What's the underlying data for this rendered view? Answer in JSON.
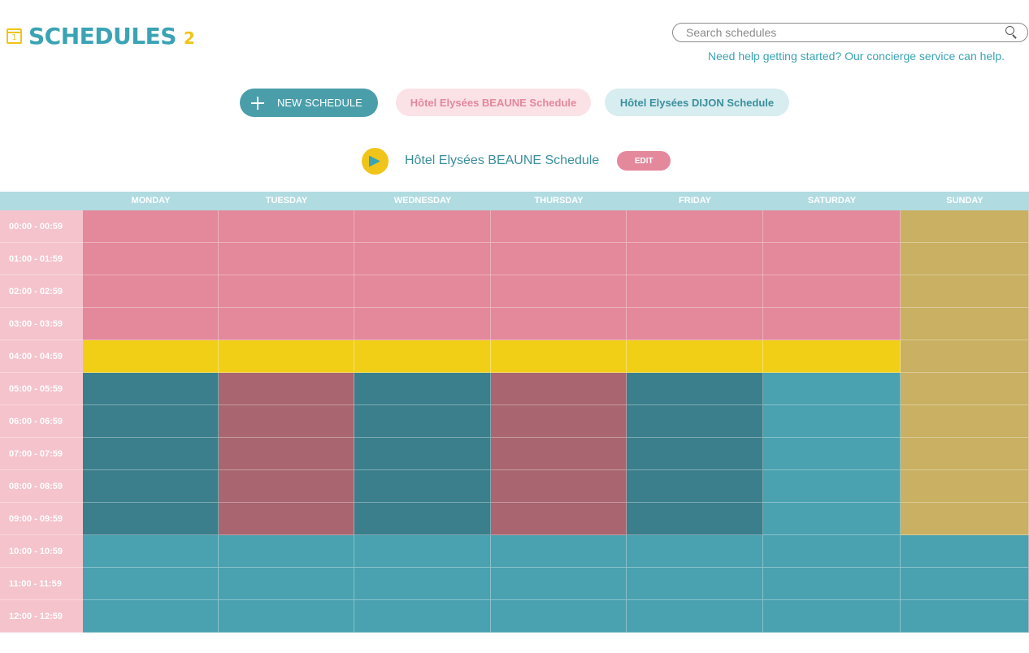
{
  "header": {
    "title": "SCHEDULES",
    "count": "2",
    "calendar_icon_digit": "1"
  },
  "search": {
    "placeholder": "Search schedules"
  },
  "help_text": "Need help getting started? Our concierge service can help.",
  "actions": {
    "new_schedule_label": "NEW SCHEDULE"
  },
  "schedule_tabs": [
    {
      "label": "Hôtel Elysées BEAUNE Schedule"
    },
    {
      "label": "Hôtel Elysées DIJON Schedule"
    }
  ],
  "current_schedule": {
    "name": "Hôtel Elysées BEAUNE Schedule",
    "edit_label": "EDIT"
  },
  "colors": {
    "pink": "#e4889b",
    "yellow": "#f2cf17",
    "dark_teal": "#3a7f8b",
    "mauve": "#a96570",
    "teal": "#4aa1b0",
    "olive": "#c9b062"
  },
  "days": [
    "MONDAY",
    "TUESDAY",
    "WEDNESDAY",
    "THURSDAY",
    "FRIDAY",
    "SATURDAY",
    "SUNDAY"
  ],
  "time_slots": [
    "00:00 - 00:59",
    "01:00 - 01:59",
    "02:00 - 02:59",
    "03:00 - 03:59",
    "04:00 - 04:59",
    "05:00 - 05:59",
    "06:00 - 06:59",
    "07:00 - 07:59",
    "08:00 - 08:59",
    "09:00 - 09:59",
    "10:00 - 10:59",
    "11:00 - 11:59",
    "12:00 - 12:59"
  ],
  "schedule_grid": [
    [
      "pink",
      "pink",
      "pink",
      "pink",
      "pink",
      "pink",
      "olive"
    ],
    [
      "pink",
      "pink",
      "pink",
      "pink",
      "pink",
      "pink",
      "olive"
    ],
    [
      "pink",
      "pink",
      "pink",
      "pink",
      "pink",
      "pink",
      "olive"
    ],
    [
      "pink",
      "pink",
      "pink",
      "pink",
      "pink",
      "pink",
      "olive"
    ],
    [
      "yellow",
      "yellow",
      "yellow",
      "yellow",
      "yellow",
      "yellow",
      "olive"
    ],
    [
      "dark_teal",
      "mauve",
      "dark_teal",
      "mauve",
      "dark_teal",
      "teal",
      "olive"
    ],
    [
      "dark_teal",
      "mauve",
      "dark_teal",
      "mauve",
      "dark_teal",
      "teal",
      "olive"
    ],
    [
      "dark_teal",
      "mauve",
      "dark_teal",
      "mauve",
      "dark_teal",
      "teal",
      "olive"
    ],
    [
      "dark_teal",
      "mauve",
      "dark_teal",
      "mauve",
      "dark_teal",
      "teal",
      "olive"
    ],
    [
      "dark_teal",
      "mauve",
      "dark_teal",
      "mauve",
      "dark_teal",
      "teal",
      "olive"
    ],
    [
      "teal",
      "teal",
      "teal",
      "teal",
      "teal",
      "teal",
      "teal"
    ],
    [
      "teal",
      "teal",
      "teal",
      "teal",
      "teal",
      "teal",
      "teal"
    ],
    [
      "teal",
      "teal",
      "teal",
      "teal",
      "teal",
      "teal",
      "teal"
    ]
  ]
}
